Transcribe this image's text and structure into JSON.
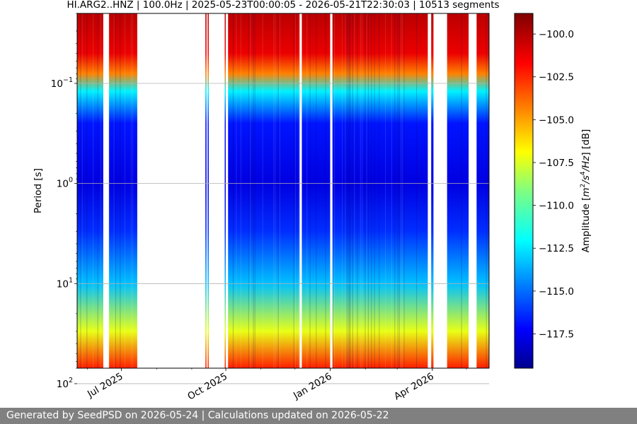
{
  "chart_data": {
    "type": "heatmap",
    "title": "HI.ARG2..HNZ | 100.0Hz | 2025-05-23T00:00:05 - 2026-05-21T22:30:03 | 10513 segments",
    "ylabel": "Period [s]",
    "xlabel": "",
    "y_scale": "log",
    "y_inverted": true,
    "ylim": [
      0.02,
      70
    ],
    "y_ticks": [
      {
        "value": 0.1,
        "base": "10",
        "exp": "−1"
      },
      {
        "value": 1,
        "base": "10",
        "exp": "0"
      },
      {
        "value": 10,
        "base": "10",
        "exp": "1"
      },
      {
        "value": 100,
        "base": "10",
        "exp": "2"
      }
    ],
    "xlim": [
      "2025-05-23",
      "2026-05-21"
    ],
    "x_ticks": [
      {
        "date": "2025-07-01",
        "label": "Jul 2025"
      },
      {
        "date": "2025-10-01",
        "label": "Oct 2025"
      },
      {
        "date": "2026-01-01",
        "label": "Jan 2026"
      },
      {
        "date": "2026-04-01",
        "label": "Apr 2026"
      }
    ],
    "grid": true,
    "colormap": "jet",
    "colorbar": {
      "label": "Amplitude [m²/s⁴/Hz] [dB]",
      "label_base": "Amplitude [",
      "label_m": "m",
      "label_exp1": "2",
      "label_s": "/s",
      "label_exp2": "4",
      "label_hz": "/Hz",
      "label_end": "] [dB]",
      "min": -119.5,
      "max": -98.8,
      "ticks": [
        {
          "value": -100.0,
          "label": "−100.0"
        },
        {
          "value": -102.5,
          "label": "−102.5"
        },
        {
          "value": -105.0,
          "label": "−105.0"
        },
        {
          "value": -107.5,
          "label": "−107.5"
        },
        {
          "value": -110.0,
          "label": "−110.0"
        },
        {
          "value": -112.5,
          "label": "−112.5"
        },
        {
          "value": -115.0,
          "label": "−115.0"
        },
        {
          "value": -117.5,
          "label": "−117.5"
        }
      ]
    },
    "data_coverage": [
      {
        "start": "2025-05-23",
        "end": "2025-06-15"
      },
      {
        "start": "2025-06-20",
        "end": "2025-07-15"
      },
      {
        "start": "2025-09-13",
        "end": "2025-09-14"
      },
      {
        "start": "2025-09-15",
        "end": "2025-09-16"
      },
      {
        "start": "2025-09-30",
        "end": "2025-10-01"
      },
      {
        "start": "2025-10-03",
        "end": "2025-12-05"
      },
      {
        "start": "2025-12-07",
        "end": "2026-01-01"
      },
      {
        "start": "2026-01-03",
        "end": "2026-01-20"
      },
      {
        "start": "2026-01-15",
        "end": "2026-03-28"
      },
      {
        "start": "2026-03-31",
        "end": "2026-04-02"
      },
      {
        "start": "2026-04-14",
        "end": "2026-05-03"
      },
      {
        "start": "2026-05-10",
        "end": "2026-05-21"
      }
    ],
    "psd_profile_db": [
      {
        "period": 0.02,
        "value": -100.0
      },
      {
        "period": 0.05,
        "value": -101.0
      },
      {
        "period": 0.08,
        "value": -104.0
      },
      {
        "period": 0.12,
        "value": -112.0
      },
      {
        "period": 0.25,
        "value": -116.5
      },
      {
        "period": 1,
        "value": -117.5
      },
      {
        "period": 3,
        "value": -116.0
      },
      {
        "period": 10,
        "value": -113.0
      },
      {
        "period": 30,
        "value": -107.0
      },
      {
        "period": 100,
        "value": -102.0
      },
      {
        "period": 300,
        "value": -99.5
      }
    ]
  },
  "footer": {
    "text": "Generated by SeedPSD on 2026-05-24 | Calculations updated on 2026-05-22"
  }
}
